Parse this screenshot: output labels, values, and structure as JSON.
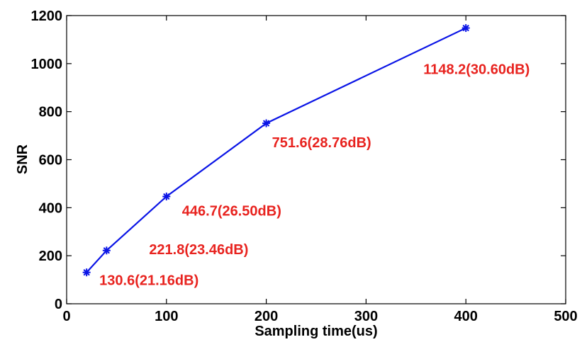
{
  "chart_data": {
    "type": "line",
    "title": "",
    "xlabel": "Sampling time(us)",
    "ylabel": "SNR",
    "xlim": [
      0,
      500
    ],
    "ylim": [
      0,
      1200
    ],
    "x_ticks": [
      "0",
      "100",
      "200",
      "300",
      "400",
      "500"
    ],
    "y_ticks": [
      "0",
      "200",
      "400",
      "600",
      "800",
      "1000",
      "1200"
    ],
    "grid": false,
    "legend": "none",
    "series": [
      {
        "color": "#0a14e6",
        "marker": "asterisk",
        "x": [
          20,
          40,
          100,
          200,
          400
        ],
        "y": [
          130.6,
          221.8,
          446.7,
          751.6,
          1148.2
        ]
      }
    ],
    "annotations": [
      {
        "text": "130.6(21.16dB)",
        "x": 20,
        "y": 130.6
      },
      {
        "text": "221.8(23.46dB)",
        "x": 40,
        "y": 221.8
      },
      {
        "text": "446.7(26.50dB)",
        "x": 100,
        "y": 446.7
      },
      {
        "text": "751.6(28.76dB)",
        "x": 200,
        "y": 751.6
      },
      {
        "text": "1148.2(30.60dB)",
        "x": 400,
        "y": 1148.2
      }
    ],
    "annotation_color": "#e8231f"
  }
}
